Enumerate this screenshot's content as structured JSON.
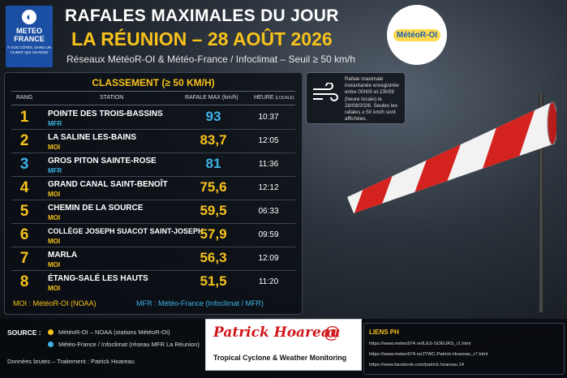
{
  "logo": {
    "name_line1": "METEO",
    "name_line2": "FRANCE",
    "tagline": "À VOS CÔTÉS, DANS UN CLIMAT QUI CHANGE"
  },
  "header": {
    "title": "RAFALES MAXIMALES DU JOUR",
    "subtitle_main": "LA RÉUNION – 28 AOÛT 2026",
    "subtitle_sources": "Réseaux MétéoR-OI & Météo-France / Infoclimat – Seuil ≥ 50 km/h"
  },
  "partner_logo": "MétéoR-OI",
  "table": {
    "title": "CLASSEMENT (≥ 50 KM/H)",
    "columns": {
      "rank": "RANG",
      "station": "STATION",
      "gust": "RAFALE MAX (km/h)",
      "time": "HEURE",
      "time_note": "(LOCALE)"
    },
    "rows": [
      {
        "rank": "1",
        "station": "POINTE DES TROIS-BASSINS",
        "network": "MFR",
        "gust": "93",
        "time": "10:37"
      },
      {
        "rank": "2",
        "station": "LA SALINE LES-BAINS",
        "network": "MOI",
        "gust": "83,7",
        "time": "12:05"
      },
      {
        "rank": "3",
        "station": "GROS PITON SAINTE-ROSE",
        "network": "MFR",
        "gust": "81",
        "time": "11:36"
      },
      {
        "rank": "4",
        "station": "GRAND CANAL SAINT-BENOÎT",
        "network": "MOI",
        "gust": "75,6",
        "time": "12:12"
      },
      {
        "rank": "5",
        "station": "CHEMIN DE LA SOURCE",
        "network": "MOI",
        "gust": "59,5",
        "time": "06:33"
      },
      {
        "rank": "6",
        "station": "COLLÈGE JOSEPH SUACOT SAINT-JOSEPH",
        "network": "MOI",
        "gust": "57,9",
        "time": "09:59"
      },
      {
        "rank": "7",
        "station": "MARLA",
        "network": "MOI",
        "gust": "56,3",
        "time": "12:09"
      },
      {
        "rank": "8",
        "station": "ÉTANG-SALÉ LES HAUTS",
        "network": "MOI",
        "gust": "51,5",
        "time": "11:20"
      }
    ],
    "legend_moi": "MOI : MétéoR-OI (NOAA)",
    "legend_mfr": "MFR : Météo-France (Infoclimat / MFR)"
  },
  "info_box": "Rafale maximale instantanée enregistrée entre 00h00 et 23h59 (heure locale) le 28/08/2026. Seules les rafales ≥ 50 km/h sont affichées.",
  "sources": {
    "label": "SOURCE :",
    "item1": "MétéoR-OI – NOAA (stations MétéoR-OI)",
    "item2": "Météo-France / Infoclimat (réseau MFR La Réunion)",
    "raw": "Données brutes – Traitement : Patrick Hoareau"
  },
  "brand": {
    "name": "Patrick Hoareau",
    "tagline": "Tropical Cyclone & Weather Monitoring"
  },
  "links": {
    "title": "LIENS PH",
    "items": [
      "https://www.meteo974.re/ILES-SOEURS_r1.html",
      "https://www.meteo974.re/JTWC-Patrick-Hoareau_r7.html",
      "https://www.facebook.com/patrick.hoareau.14"
    ]
  },
  "colors": {
    "accent": "#f7c21b",
    "mfr": "#3eb3e6"
  }
}
